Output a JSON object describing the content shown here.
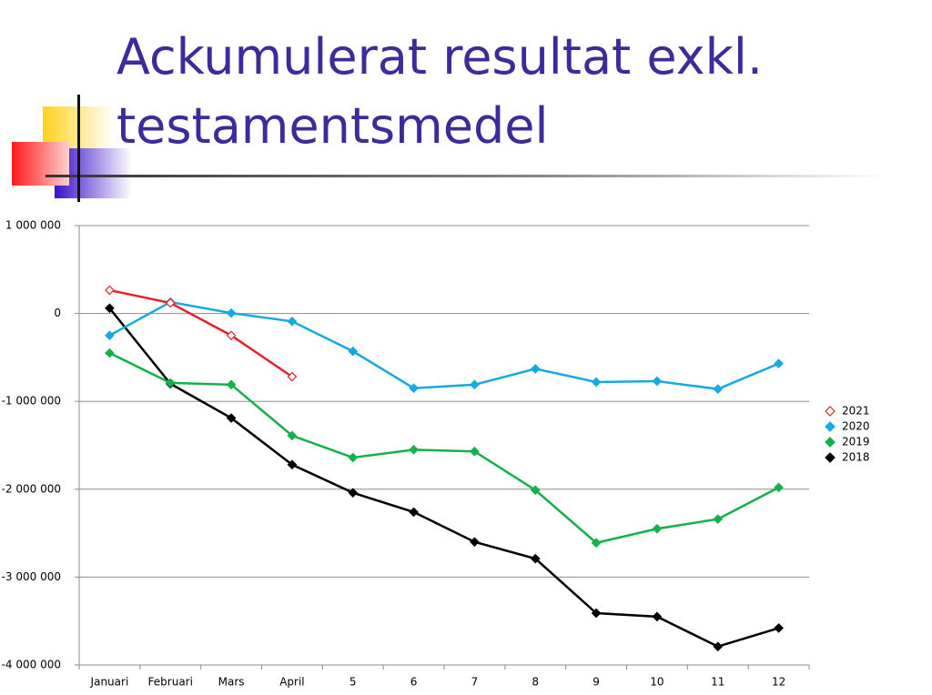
{
  "chart_data": {
    "type": "line",
    "title": [
      "Ackumulerat resultat exkl.",
      "testamentsmedel"
    ],
    "categories": [
      "Januari",
      "Februari",
      "Mars",
      "April",
      "5",
      "6",
      "7",
      "8",
      "9",
      "10",
      "11",
      "12"
    ],
    "series": [
      {
        "name": "2021",
        "color": "#e8202a",
        "marker": "hollow",
        "values": [
          265000,
          120000,
          -250000,
          -720000,
          null,
          null,
          null,
          null,
          null,
          null,
          null,
          null
        ]
      },
      {
        "name": "2020",
        "color": "#17a9e1",
        "marker": "filled",
        "values": [
          -250000,
          130000,
          5000,
          -90000,
          -430000,
          -850000,
          -810000,
          -630000,
          -780000,
          -770000,
          -860000,
          -570000
        ]
      },
      {
        "name": "2019",
        "color": "#14b04b",
        "marker": "filled",
        "values": [
          -450000,
          -790000,
          -810000,
          -1390000,
          -1640000,
          -1550000,
          -1570000,
          -2010000,
          -2610000,
          -2450000,
          -2340000,
          -1980000
        ]
      },
      {
        "name": "2018",
        "color": "#000000",
        "marker": "filled",
        "values": [
          60000,
          -800000,
          -1190000,
          -1720000,
          -2040000,
          -2260000,
          -2600000,
          -2790000,
          -3410000,
          -3450000,
          -3790000,
          -3580000
        ]
      }
    ],
    "ylim": [
      -4000000,
      1000000
    ],
    "yticks": [
      {
        "value": -4000000,
        "label": "-4 000 000"
      },
      {
        "value": -3000000,
        "label": "-3 000 000"
      },
      {
        "value": -2000000,
        "label": "-2 000 000"
      },
      {
        "value": -1000000,
        "label": "-1 000 000"
      },
      0,
      {
        "value": 1000000,
        "label": "1 000 000"
      }
    ],
    "grid": true,
    "legend": "right"
  }
}
